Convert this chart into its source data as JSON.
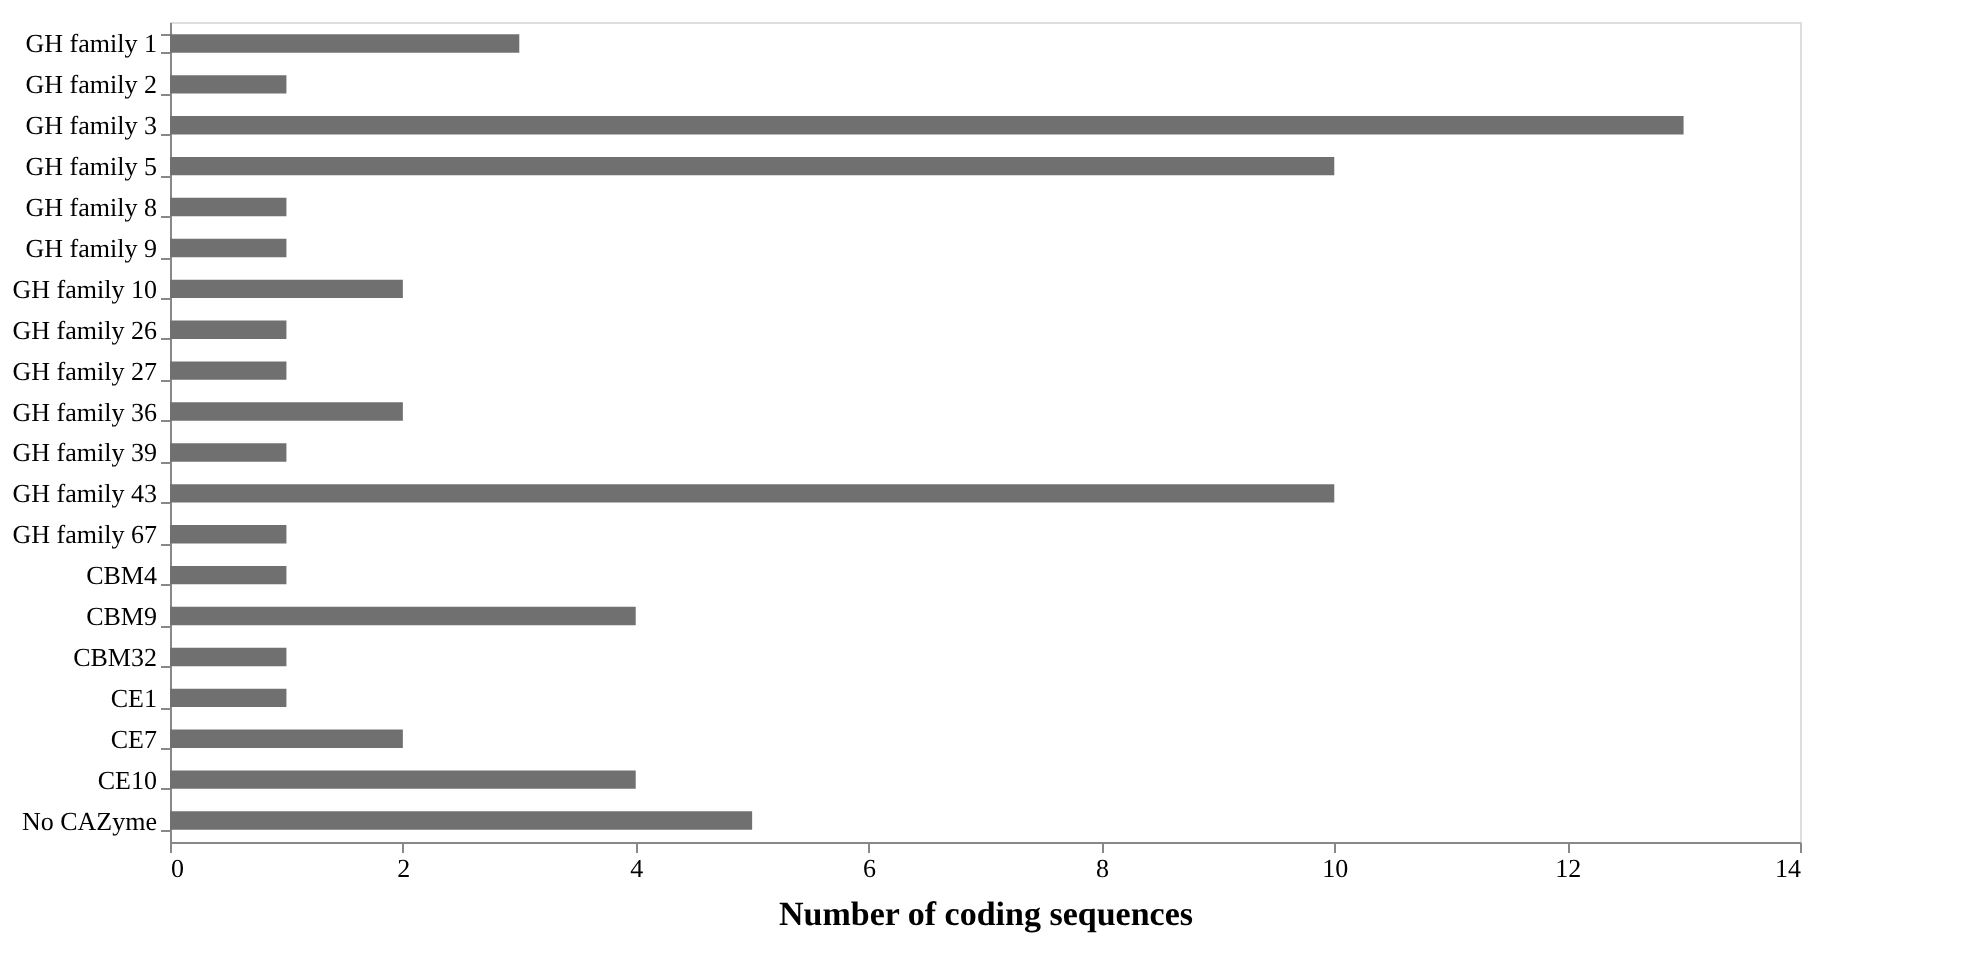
{
  "chart_data": {
    "type": "bar",
    "orientation": "horizontal",
    "xlabel": "Number of coding sequences",
    "categories": [
      "GH family 1",
      "GH family 2",
      "GH family 3",
      "GH family 5",
      "GH family 8",
      "GH family 9",
      "GH family 10",
      "GH family 26",
      "GH family 27",
      "GH family 36",
      "GH family 39",
      "GH family 43",
      "GH family 67",
      "CBM4",
      "CBM9",
      "CBM32",
      "CE1",
      "CE7",
      "CE10",
      "No CAZyme"
    ],
    "values": [
      3,
      1,
      13,
      10,
      1,
      1,
      2,
      1,
      1,
      2,
      1,
      10,
      1,
      1,
      4,
      1,
      1,
      2,
      4,
      5
    ],
    "color": "#707070",
    "xlim": [
      0,
      14
    ],
    "xticks": [
      0,
      2,
      4,
      6,
      8,
      10,
      12,
      14
    ],
    "grid": false
  }
}
